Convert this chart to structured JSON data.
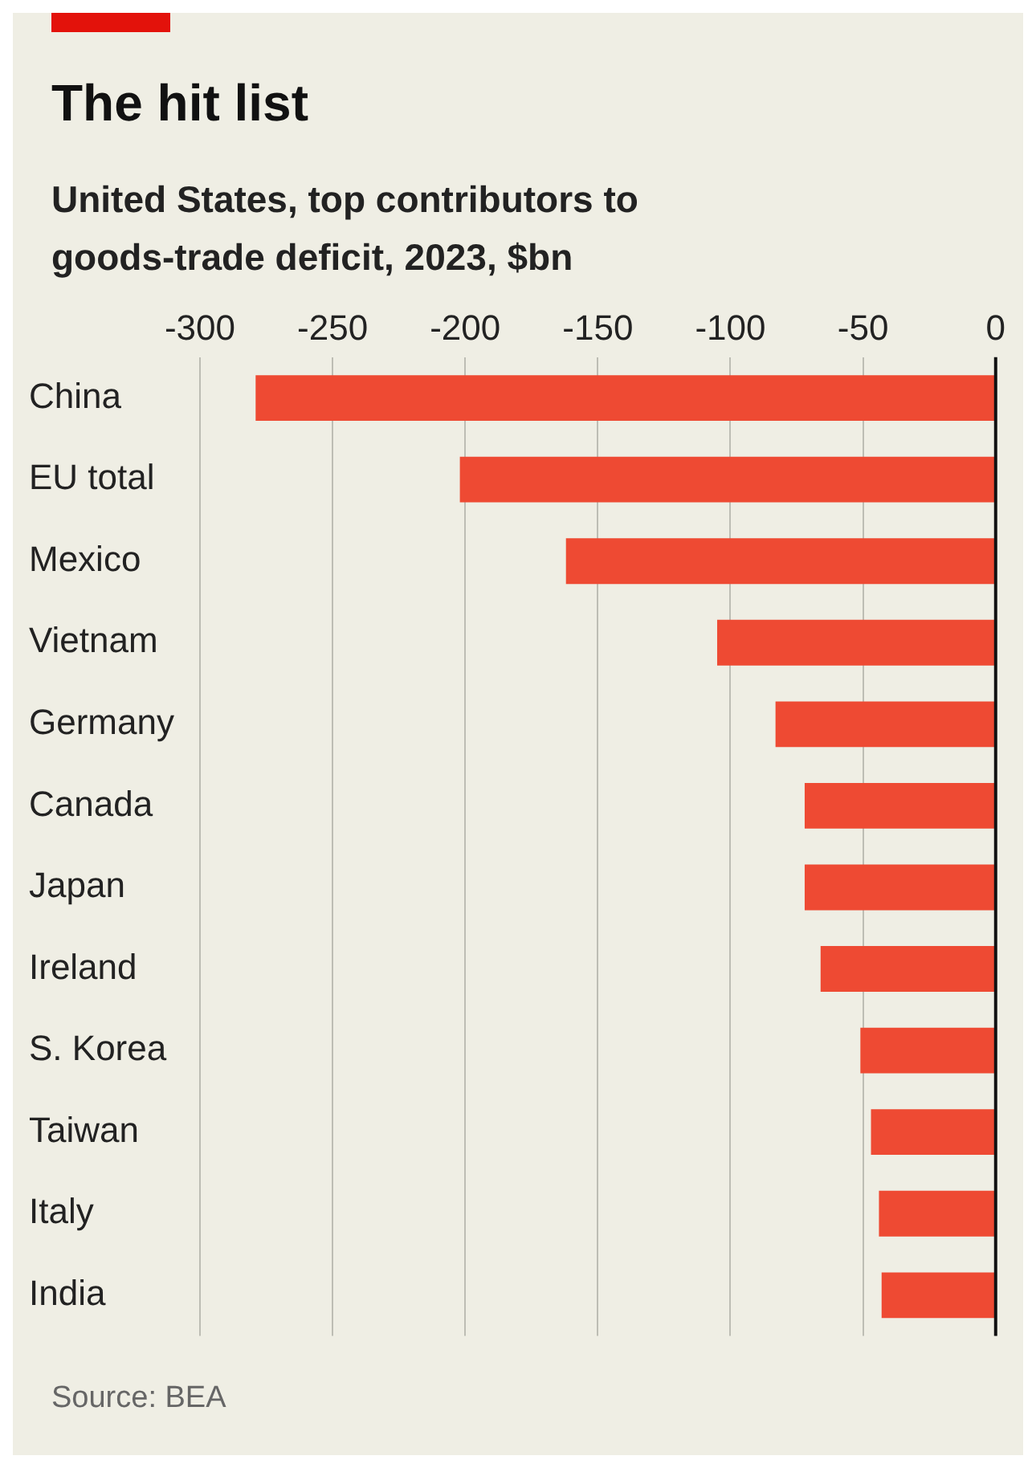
{
  "chart_data": {
    "type": "bar",
    "orientation": "horizontal",
    "title": "The hit list",
    "subtitle": "United States, top contributors to goods-trade deficit, 2023, $bn",
    "categories": [
      "China",
      "EU total",
      "Mexico",
      "Vietnam",
      "Germany",
      "Canada",
      "Japan",
      "Ireland",
      "S. Korea",
      "Taiwan",
      "Italy",
      "India"
    ],
    "values": [
      -279,
      -202,
      -162,
      -105,
      -83,
      -72,
      -72,
      -66,
      -51,
      -47,
      -44,
      -43
    ],
    "color": "#ee4a33",
    "xlim": [
      -300,
      0
    ],
    "xticks": [
      -300,
      -250,
      -200,
      -150,
      -100,
      -50,
      0
    ],
    "grid": "x",
    "legend": false,
    "annotations": [
      "Source: BEA"
    ]
  }
}
